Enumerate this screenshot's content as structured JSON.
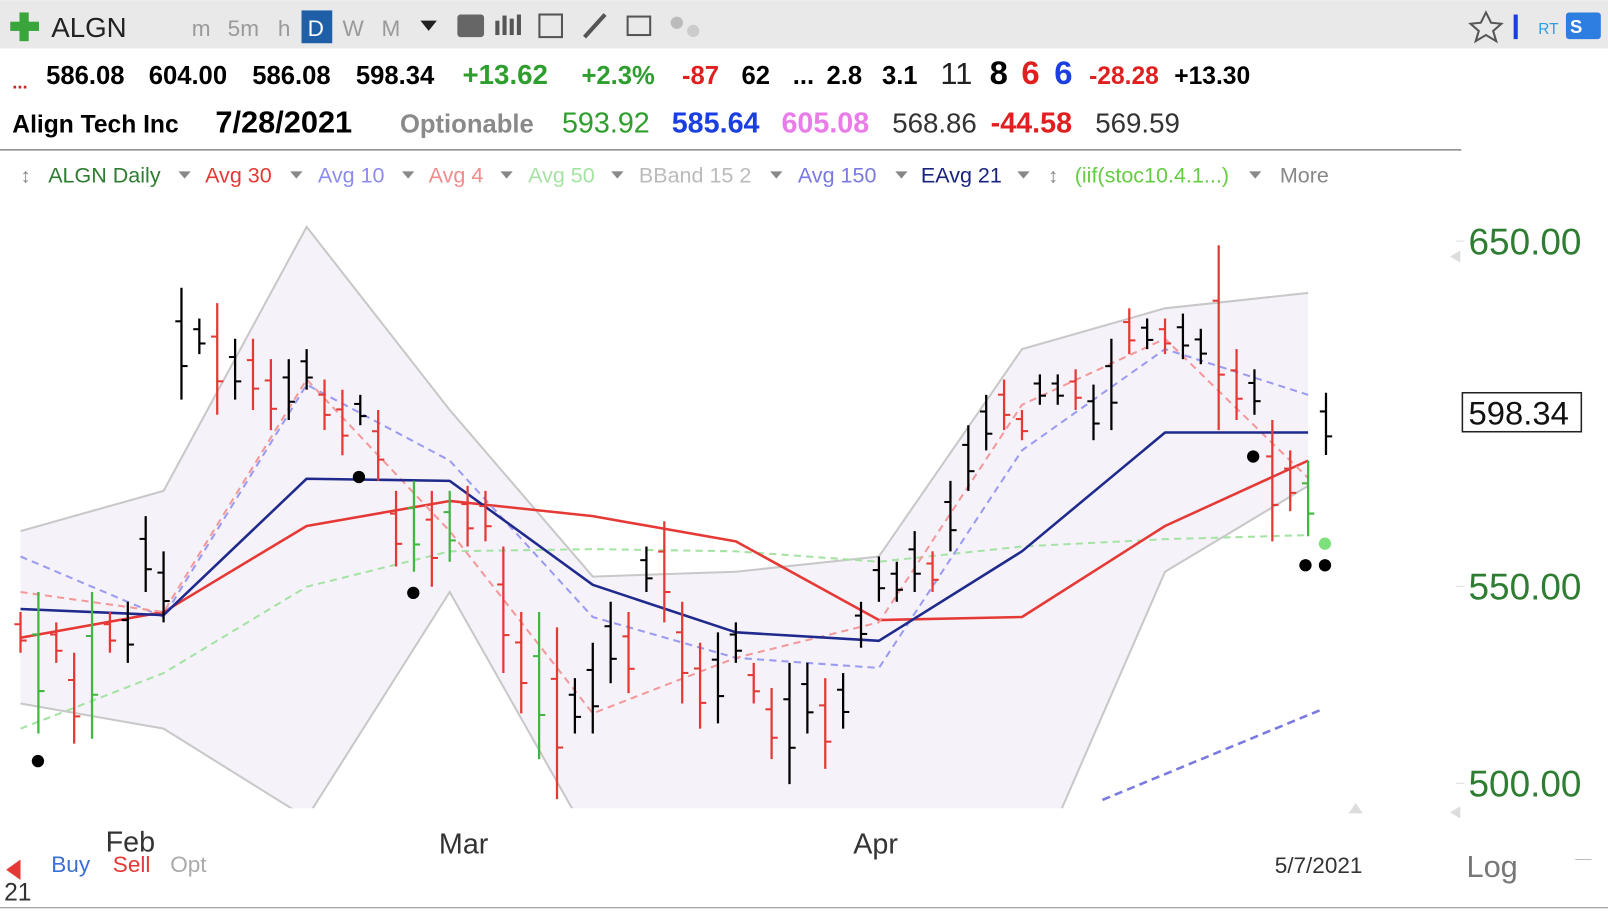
{
  "toolbar": {
    "symbol": "ALGN",
    "intervals": [
      "m",
      "5m",
      "h",
      "D",
      "W",
      "M"
    ]
  },
  "quote": {
    "row1": [
      {
        "text": "...",
        "color": "#c62828"
      },
      {
        "text": "586.08",
        "color": "#000000"
      },
      {
        "text": "604.00",
        "color": "#000000"
      },
      {
        "text": "586.08",
        "color": "#000000"
      },
      {
        "text": "598.34",
        "color": "#000000"
      },
      {
        "text": "+13.62",
        "color": "#2e9e2e"
      },
      {
        "text": "+2.3%",
        "color": "#2e9e2e"
      },
      {
        "text": "-87",
        "color": "#e02020"
      },
      {
        "text": "62",
        "color": "#000000"
      },
      {
        "text": "...",
        "color": "#000000"
      },
      {
        "text": "2.8",
        "color": "#000000"
      },
      {
        "text": "3.1",
        "color": "#000000"
      },
      {
        "text": "11",
        "color": "#222222"
      },
      {
        "text": "8",
        "color": "#000000"
      },
      {
        "text": "6",
        "color": "#e02020"
      },
      {
        "text": "6",
        "color": "#1a3ee0"
      },
      {
        "text": "-28.28",
        "color": "#e02020"
      },
      {
        "text": "+13.30",
        "color": "#000000"
      }
    ],
    "row2": [
      {
        "text": "Align Tech Inc",
        "color": "#000000"
      },
      {
        "text": "7/28/2021",
        "color": "#000000"
      },
      {
        "text": "Optionable",
        "color": "#8a8a8a"
      },
      {
        "text": "593.92",
        "color": "#2e9e2e"
      },
      {
        "text": "585.64",
        "color": "#1a3ee0"
      },
      {
        "text": "605.08",
        "color": "#e87de8"
      },
      {
        "text": "568.86",
        "color": "#333333"
      },
      {
        "text": "-44.58",
        "color": "#e02020"
      },
      {
        "text": "569.59",
        "color": "#333333"
      }
    ]
  },
  "legend": [
    {
      "text": "ALGN Daily",
      "color": "#2e7d32"
    },
    {
      "text": "Avg 30",
      "color": "#e53935"
    },
    {
      "text": "Avg 10",
      "color": "#8c8cf0"
    },
    {
      "text": "Avg 4",
      "color": "#f08c8c"
    },
    {
      "text": "Avg 50",
      "color": "#a5e3a5"
    },
    {
      "text": "BBand 15 2",
      "color": "#bbbbbb"
    },
    {
      "text": "Avg 150",
      "color": "#7a7ae0"
    },
    {
      "text": "EAvg 21",
      "color": "#1a237e"
    },
    {
      "text": "(iif(stoc10.4.1...)",
      "color": "#66cc44"
    },
    {
      "text": "More",
      "color": "#888888"
    }
  ],
  "chart": {
    "log": true,
    "ylim": [
      494,
      664
    ],
    "yticks": [
      {
        "value": 650,
        "label": "650.00"
      },
      {
        "value": 550,
        "label": "550.00"
      },
      {
        "value": 500,
        "label": "500.00"
      }
    ],
    "last_price": "598.34",
    "months": [
      "Feb",
      "Mar",
      "Apr"
    ],
    "date": "5/7/2021",
    "bband": {
      "upper": [
        564.9,
        576.0,
        654.5,
        599.0,
        552.6,
        553.9,
        558.0,
        616.9,
        629.2,
        633.9
      ],
      "lower": [
        519.7,
        513.4,
        491.7,
        548.5,
        485.3,
        468.0,
        468.0,
        472.6,
        553.9,
        577.4
      ]
    },
    "lines": [
      {
        "color": "#a5e3a5",
        "dash": true,
        "values": [
          513.4,
          527.4,
          549.9,
          559.4,
          560.0,
          559.4,
          556.6,
          560.7,
          562.7,
          563.8
        ]
      },
      {
        "color": "#e53935",
        "dash": false,
        "values": [
          536.5,
          543.2,
          566.3,
          573.2,
          569.0,
          562.1,
          541.1,
          541.9,
          566.3,
          584.5
        ]
      },
      {
        "color": "#9b9bf0",
        "dash": true,
        "values": [
          558.0,
          541.9,
          606.4,
          584.5,
          541.9,
          531.3,
          528.7,
          587.4,
          616.9,
          603.4
        ]
      },
      {
        "color": "#f29a9a",
        "dash": true,
        "values": [
          548.5,
          543.2,
          607.9,
          564.9,
          517.2,
          531.3,
          540.5,
          600.5,
          620.0,
          579.6
        ]
      },
      {
        "color": "#1f2a8c",
        "dash": false,
        "values": [
          544.0,
          542.4,
          579.4,
          578.8,
          550.4,
          537.9,
          535.7,
          559.4,
          592.5,
          592.5
        ]
      }
    ],
    "avg150": {
      "color": "#7a7ae0",
      "values": [
        496.0,
        518.3
      ]
    },
    "bars": [
      {
        "high": 543.2,
        "low": 532.6,
        "color": "#e53935"
      },
      {
        "high": 548.5,
        "low": 512.2,
        "color": "#43b543"
      },
      {
        "high": 540.5,
        "low": 530.0,
        "color": "#e53935"
      },
      {
        "high": 532.6,
        "low": 509.7,
        "color": "#e53935"
      },
      {
        "high": 548.5,
        "low": 510.9,
        "color": "#43b543"
      },
      {
        "high": 543.2,
        "low": 532.6,
        "color": "#e53935"
      },
      {
        "high": 545.9,
        "low": 530.0,
        "color": "#000000"
      },
      {
        "high": 569.0,
        "low": 548.5,
        "color": "#000000"
      },
      {
        "high": 559.4,
        "low": 540.5,
        "color": "#000000"
      },
      {
        "high": 635.5,
        "low": 602.0,
        "color": "#000000"
      },
      {
        "high": 626.1,
        "low": 615.4,
        "color": "#000000"
      },
      {
        "high": 630.8,
        "low": 597.6,
        "color": "#e53935"
      },
      {
        "high": 620.0,
        "low": 602.0,
        "color": "#000000"
      },
      {
        "high": 620.0,
        "low": 599.0,
        "color": "#e53935"
      },
      {
        "high": 613.9,
        "low": 593.2,
        "color": "#e53935"
      },
      {
        "high": 613.9,
        "low": 596.1,
        "color": "#000000"
      },
      {
        "high": 616.9,
        "low": 604.9,
        "color": "#000000"
      },
      {
        "high": 607.9,
        "low": 593.2,
        "color": "#e53935"
      },
      {
        "high": 604.9,
        "low": 586.0,
        "color": "#e53935"
      },
      {
        "high": 603.4,
        "low": 594.6,
        "color": "#000000"
      },
      {
        "high": 599.0,
        "low": 578.8,
        "color": "#e53935"
      },
      {
        "high": 576.0,
        "low": 555.3,
        "color": "#e53935"
      },
      {
        "high": 578.8,
        "low": 553.9,
        "color": "#43b543"
      },
      {
        "high": 576.0,
        "low": 549.9,
        "color": "#e53935"
      },
      {
        "high": 576.0,
        "low": 556.6,
        "color": "#43b543"
      },
      {
        "high": 577.4,
        "low": 560.7,
        "color": "#e53935"
      },
      {
        "high": 576.0,
        "low": 562.1,
        "color": "#e53935"
      },
      {
        "high": 560.7,
        "low": 527.4,
        "color": "#e53935"
      },
      {
        "high": 543.2,
        "low": 517.2,
        "color": "#e53935"
      },
      {
        "high": 543.2,
        "low": 505.9,
        "color": "#43b543"
      },
      {
        "high": 539.2,
        "low": 496.2,
        "color": "#e53935"
      },
      {
        "high": 526.1,
        "low": 512.2,
        "color": "#000000"
      },
      {
        "high": 535.2,
        "low": 512.2,
        "color": "#000000"
      },
      {
        "high": 545.9,
        "low": 524.8,
        "color": "#000000"
      },
      {
        "high": 543.2,
        "low": 522.3,
        "color": "#e53935"
      },
      {
        "high": 560.7,
        "low": 548.5,
        "color": "#000000"
      },
      {
        "high": 567.6,
        "low": 540.5,
        "color": "#e53935"
      },
      {
        "high": 545.9,
        "low": 519.7,
        "color": "#e53935"
      },
      {
        "high": 535.2,
        "low": 513.4,
        "color": "#e53935"
      },
      {
        "high": 537.9,
        "low": 514.7,
        "color": "#000000"
      },
      {
        "high": 540.5,
        "low": 530.0,
        "color": "#000000"
      },
      {
        "high": 530.0,
        "low": 519.7,
        "color": "#e53935"
      },
      {
        "high": 523.6,
        "low": 505.9,
        "color": "#e53935"
      },
      {
        "high": 530.0,
        "low": 499.8,
        "color": "#000000"
      },
      {
        "high": 530.0,
        "low": 512.2,
        "color": "#000000"
      },
      {
        "high": 526.1,
        "low": 503.5,
        "color": "#e53935"
      },
      {
        "high": 527.4,
        "low": 513.4,
        "color": "#000000"
      },
      {
        "high": 545.9,
        "low": 533.9,
        "color": "#000000"
      },
      {
        "high": 558.0,
        "low": 545.9,
        "color": "#000000"
      },
      {
        "high": 556.6,
        "low": 545.9,
        "color": "#000000"
      },
      {
        "high": 564.9,
        "low": 548.5,
        "color": "#000000"
      },
      {
        "high": 559.4,
        "low": 548.5,
        "color": "#e53935"
      },
      {
        "high": 578.8,
        "low": 559.4,
        "color": "#000000"
      },
      {
        "high": 594.6,
        "low": 576.0,
        "color": "#000000"
      },
      {
        "high": 603.4,
        "low": 587.4,
        "color": "#000000"
      },
      {
        "high": 607.9,
        "low": 593.2,
        "color": "#e53935"
      },
      {
        "high": 599.0,
        "low": 590.3,
        "color": "#e53935"
      },
      {
        "high": 609.4,
        "low": 600.5,
        "color": "#000000"
      },
      {
        "high": 609.4,
        "low": 600.5,
        "color": "#000000"
      },
      {
        "high": 610.9,
        "low": 599.0,
        "color": "#e53935"
      },
      {
        "high": 606.4,
        "low": 590.3,
        "color": "#000000"
      },
      {
        "high": 620.0,
        "low": 593.2,
        "color": "#000000"
      },
      {
        "high": 629.2,
        "low": 615.4,
        "color": "#e53935"
      },
      {
        "high": 626.1,
        "low": 616.9,
        "color": "#000000"
      },
      {
        "high": 626.1,
        "low": 615.4,
        "color": "#e53935"
      },
      {
        "high": 627.6,
        "low": 613.9,
        "color": "#000000"
      },
      {
        "high": 623.0,
        "low": 612.4,
        "color": "#000000"
      },
      {
        "high": 648.7,
        "low": 593.2,
        "color": "#e53935"
      },
      {
        "high": 616.9,
        "low": 596.1,
        "color": "#e53935"
      },
      {
        "high": 610.9,
        "low": 597.6,
        "color": "#000000"
      },
      {
        "high": 596.1,
        "low": 562.1,
        "color": "#e53935"
      },
      {
        "high": 587.4,
        "low": 570.4,
        "color": "#e53935"
      },
      {
        "high": 584.5,
        "low": 563.5,
        "color": "#43b543"
      },
      {
        "high": 604.0,
        "low": 586.08,
        "color": "#000000"
      }
    ]
  },
  "bottom": {
    "buttons": [
      {
        "text": "Buy",
        "color": "#3b6fd4"
      },
      {
        "text": "Sell",
        "color": "#e53935"
      },
      {
        "text": "Opt",
        "color": "#aaaaaa"
      }
    ],
    "scale": "Log",
    "counter": "21"
  }
}
